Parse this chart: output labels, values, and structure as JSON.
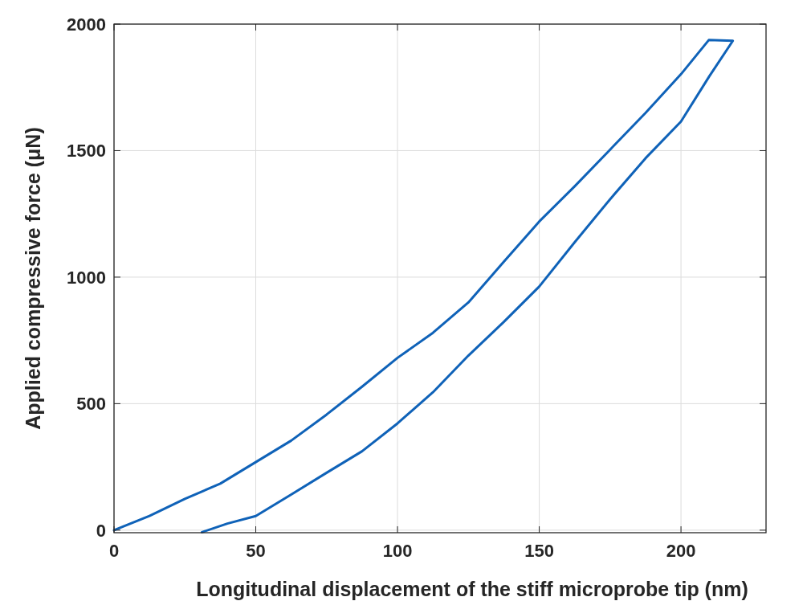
{
  "chart_data": {
    "type": "line",
    "xlabel": "Longitudinal displacement of the stiff microprobe tip (nm)",
    "ylabel": "Applied compressive force (μN)",
    "xlim": [
      0,
      230
    ],
    "xticks": [
      0,
      50,
      100,
      150,
      200
    ],
    "ylim": [
      -10,
      2000
    ],
    "yticks": [
      0,
      500,
      1000,
      1500,
      2000
    ],
    "grid": true,
    "series": [
      {
        "color": "#0f62b8",
        "x": [
          0,
          12.5,
          25,
          37.5,
          50,
          62.5,
          75,
          87.5,
          100,
          112.5,
          125,
          137.5,
          150,
          162.5,
          175,
          187.5,
          200,
          209.8,
          218.3,
          210,
          200,
          187.5,
          175,
          162.5,
          150,
          137.5,
          125,
          112.5,
          100,
          87.5,
          75,
          62.5,
          50,
          40,
          31
        ],
        "values": [
          0,
          56,
          124,
          184,
          269,
          354,
          457,
          567,
          681,
          780,
          900,
          1061,
          1220,
          1359,
          1504,
          1649,
          1802,
          1937,
          1934,
          1794,
          1615,
          1470,
          1308,
          1138,
          963,
          823,
          690,
          545,
          422,
          312,
          227,
          141,
          56,
          26,
          -8
        ]
      }
    ]
  }
}
